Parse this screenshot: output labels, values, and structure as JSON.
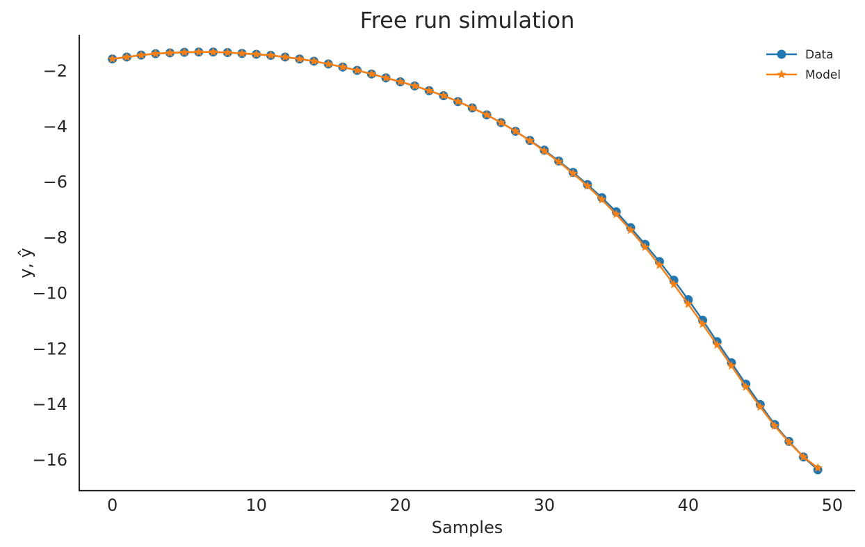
{
  "chart_data": {
    "type": "line",
    "title": "Free run simulation",
    "xlabel": "Samples",
    "ylabel": "y, ŷ",
    "xlim": [
      -2.3,
      51.6
    ],
    "ylim": [
      -17.1,
      -0.7
    ],
    "xticks": [
      0,
      10,
      20,
      30,
      40,
      50
    ],
    "yticks": [
      -2,
      -4,
      -6,
      -8,
      -10,
      -12,
      -14,
      -16
    ],
    "xtick_labels": [
      "0",
      "10",
      "20",
      "30",
      "40",
      "50"
    ],
    "ytick_labels": [
      "−2",
      "−4",
      "−6",
      "−8",
      "−10",
      "−12",
      "−14",
      "−16"
    ],
    "grid": false,
    "legend_position": "top-right",
    "x": [
      0,
      1,
      2,
      3,
      4,
      5,
      6,
      7,
      8,
      9,
      10,
      11,
      12,
      13,
      14,
      15,
      16,
      17,
      18,
      19,
      20,
      21,
      22,
      23,
      24,
      25,
      26,
      27,
      28,
      29,
      30,
      31,
      32,
      33,
      34,
      35,
      36,
      37,
      38,
      39,
      40,
      41,
      42,
      43,
      44,
      45,
      46,
      47,
      48,
      49
    ],
    "series": [
      {
        "name": "Data",
        "color": "#1f77b4",
        "marker": "circle",
        "values": [
          -1.57,
          -1.5,
          -1.43,
          -1.38,
          -1.35,
          -1.33,
          -1.32,
          -1.32,
          -1.34,
          -1.37,
          -1.4,
          -1.44,
          -1.5,
          -1.57,
          -1.65,
          -1.75,
          -1.86,
          -1.98,
          -2.11,
          -2.25,
          -2.39,
          -2.54,
          -2.71,
          -2.89,
          -3.1,
          -3.33,
          -3.58,
          -3.86,
          -4.17,
          -4.5,
          -4.85,
          -5.24,
          -5.65,
          -6.09,
          -6.56,
          -7.07,
          -7.64,
          -8.24,
          -8.86,
          -9.53,
          -10.23,
          -10.97,
          -11.74,
          -12.5,
          -13.27,
          -14.0,
          -14.72,
          -15.33,
          -15.89,
          -16.35
        ]
      },
      {
        "name": "Model",
        "color": "#ff7f0e",
        "marker": "star",
        "values": [
          -1.57,
          -1.5,
          -1.43,
          -1.38,
          -1.35,
          -1.33,
          -1.32,
          -1.32,
          -1.34,
          -1.37,
          -1.4,
          -1.44,
          -1.5,
          -1.57,
          -1.65,
          -1.75,
          -1.86,
          -1.98,
          -2.11,
          -2.25,
          -2.39,
          -2.54,
          -2.71,
          -2.89,
          -3.1,
          -3.33,
          -3.58,
          -3.86,
          -4.17,
          -4.51,
          -4.88,
          -5.27,
          -5.69,
          -6.14,
          -6.63,
          -7.16,
          -7.73,
          -8.34,
          -8.99,
          -9.68,
          -10.39,
          -11.11,
          -11.86,
          -12.61,
          -13.37,
          -14.09,
          -14.77,
          -15.36,
          -15.89,
          -16.28
        ]
      }
    ]
  }
}
